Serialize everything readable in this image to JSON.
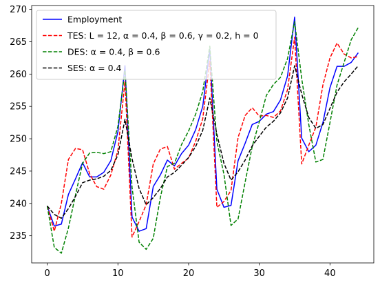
{
  "chart_data": {
    "type": "line",
    "title": "",
    "xlabel": "",
    "ylabel": "",
    "xlim": [
      -2.2,
      46.2
    ],
    "ylim": [
      230.8,
      270.6
    ],
    "xticks": [
      0,
      10,
      20,
      30,
      40
    ],
    "yticks": [
      235,
      240,
      245,
      250,
      255,
      260,
      265,
      270
    ],
    "grid": false,
    "legend_position": "upper-left",
    "x": [
      0,
      1,
      2,
      3,
      4,
      5,
      6,
      7,
      8,
      9,
      10,
      11,
      12,
      13,
      14,
      15,
      16,
      17,
      18,
      19,
      20,
      21,
      22,
      23,
      24,
      25,
      26,
      27,
      28,
      29,
      30,
      31,
      32,
      33,
      34,
      35,
      36,
      37,
      38,
      39,
      40,
      41,
      42,
      43,
      44
    ],
    "series": [
      {
        "name": "Employment",
        "legend_label": "Employment",
        "color": "#0000ff",
        "dash": "solid",
        "values": [
          239.6,
          236.5,
          236.8,
          241.4,
          243.8,
          246.3,
          244.1,
          244.1,
          244.8,
          246.6,
          251.1,
          261.3,
          237.9,
          235.7,
          236.1,
          242.6,
          244.4,
          246.7,
          245.8,
          247.7,
          249.0,
          251.4,
          255.0,
          263.8,
          242.2,
          239.4,
          239.7,
          246.6,
          249.3,
          252.2,
          252.7,
          253.8,
          254.2,
          256.0,
          259.7,
          268.8,
          250.1,
          248.0,
          249.0,
          252.5,
          257.9,
          261.2,
          261.2,
          261.8,
          263.3
        ]
      },
      {
        "name": "TES",
        "legend_label": "TES: L = 12, α = 0.4, β = 0.6, γ = 0.2, h = 0",
        "color": "#ff0000",
        "dash": "dashed",
        "values": [
          239.6,
          235.7,
          240.0,
          246.8,
          248.5,
          248.3,
          244.6,
          242.6,
          242.2,
          244.4,
          248.2,
          258.9,
          234.8,
          237.2,
          239.8,
          246.1,
          248.4,
          248.8,
          245.3,
          246.2,
          247.0,
          249.6,
          253.1,
          262.0,
          239.4,
          240.3,
          242.0,
          250.2,
          253.6,
          254.8,
          253.5,
          253.6,
          253.3,
          254.3,
          257.6,
          265.7,
          246.1,
          249.0,
          251.8,
          258.3,
          262.5,
          264.8,
          263.1,
          262.5,
          262.7
        ]
      },
      {
        "name": "DES",
        "legend_label": "DES: α = 0.4, β = 0.6",
        "color": "#008000",
        "dash": "dashed",
        "values": [
          239.6,
          233.2,
          232.3,
          236.2,
          241.3,
          246.2,
          247.8,
          247.9,
          247.7,
          248.0,
          251.9,
          260.6,
          242.5,
          234.0,
          232.9,
          234.6,
          240.9,
          245.7,
          246.2,
          249.1,
          251.2,
          253.8,
          257.3,
          264.3,
          249.6,
          244.5,
          236.6,
          237.6,
          243.3,
          248.8,
          252.6,
          256.7,
          258.4,
          259.5,
          262.4,
          268.1,
          259.3,
          252.2,
          246.4,
          246.8,
          252.5,
          258.3,
          261.8,
          265.3,
          267.2
        ]
      },
      {
        "name": "SES",
        "legend_label": "SES: α = 0.4",
        "color": "#000000",
        "dash": "dashed",
        "values": [
          239.6,
          238.3,
          237.7,
          239.2,
          241.1,
          243.2,
          243.6,
          243.8,
          244.2,
          245.1,
          247.5,
          253.0,
          246.9,
          242.3,
          239.8,
          240.9,
          242.3,
          244.1,
          244.8,
          245.9,
          247.1,
          248.8,
          251.3,
          256.3,
          250.7,
          246.2,
          243.6,
          244.9,
          246.7,
          248.9,
          250.4,
          251.8,
          252.7,
          254.0,
          256.3,
          261.3,
          256.9,
          253.3,
          251.6,
          252.2,
          254.7,
          257.2,
          258.8,
          260.0,
          261.3
        ]
      }
    ]
  }
}
